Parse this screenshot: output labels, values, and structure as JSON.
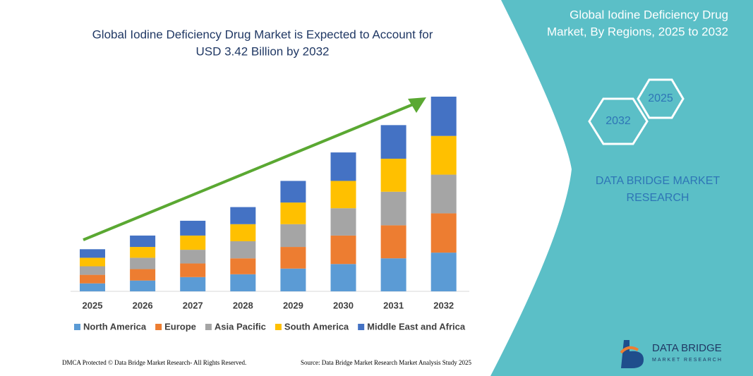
{
  "chart_data": {
    "type": "stacked_bar",
    "title": [
      "Global Iodine Deficiency Drug Market is Expected to Account for",
      "USD 3.42 Billion by 2032"
    ],
    "categories": [
      "2025",
      "2026",
      "2027",
      "2028",
      "2029",
      "2030",
      "2031",
      "2032"
    ],
    "series": [
      {
        "name": "North America",
        "color": "#5b9bd5",
        "values": [
          0.14,
          0.19,
          0.25,
          0.3,
          0.4,
          0.48,
          0.58,
          0.68
        ]
      },
      {
        "name": "Europe",
        "color": "#ed7d31",
        "values": [
          0.15,
          0.2,
          0.24,
          0.28,
          0.38,
          0.5,
          0.58,
          0.69
        ]
      },
      {
        "name": "Asia Pacific",
        "color": "#a5a5a5",
        "values": [
          0.15,
          0.2,
          0.24,
          0.3,
          0.4,
          0.48,
          0.59,
          0.68
        ]
      },
      {
        "name": "South America",
        "color": "#ffc000",
        "values": [
          0.15,
          0.19,
          0.25,
          0.3,
          0.38,
          0.48,
          0.58,
          0.68
        ]
      },
      {
        "name": "Middle East and Africa",
        "color": "#4472c4",
        "values": [
          0.15,
          0.2,
          0.26,
          0.3,
          0.38,
          0.5,
          0.59,
          0.69
        ]
      }
    ],
    "legend": "bottom"
  },
  "panel": {
    "title": [
      "Global Iodine Deficiency Drug",
      "Market, By Regions, 2025 to 2032"
    ],
    "hexagons": [
      "2032",
      "2025"
    ],
    "brand": [
      "DATA BRIDGE MARKET",
      "RESEARCH"
    ],
    "logo": [
      "DATA BRIDGE",
      "MARKET RESEARCH"
    ]
  },
  "footer": {
    "left": "DMCA Protected © Data Bridge Market Research- All Rights Reserved.",
    "right": "Source: Data Bridge Market Research Market Analysis Study 2025"
  }
}
